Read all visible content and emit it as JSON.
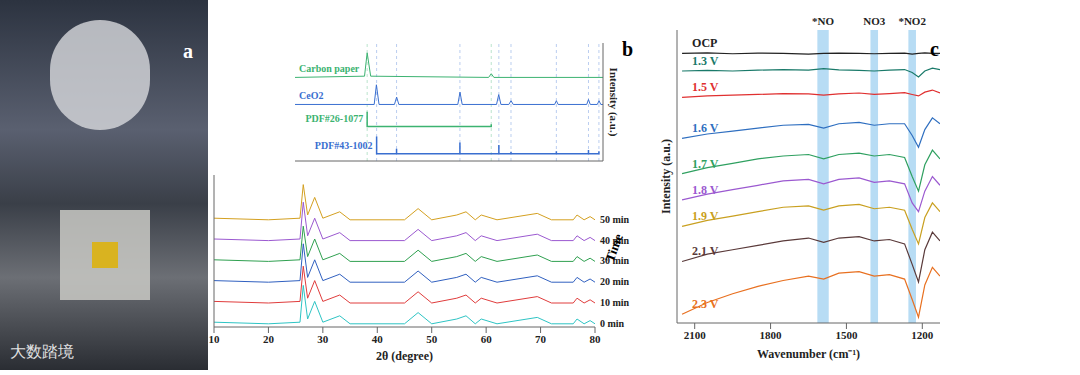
{
  "panel_labels": [
    "a",
    "b",
    "c"
  ],
  "photo": {
    "watermark": "大数踏境"
  },
  "chart_data": [
    {
      "type": "line",
      "y_label": "Intensity (a.u.)",
      "xlim": [
        10,
        80
      ],
      "ylim": [
        0,
        4.8
      ],
      "tick_labels": false,
      "series": [
        {
          "name": "Carbon paper",
          "color": "#3cb371",
          "x": [
            10,
            25.8,
            26.4,
            27.2,
            54,
            54.6,
            55.2,
            80
          ],
          "values": [
            3.4,
            3.45,
            4.4,
            3.45,
            3.4,
            3.55,
            3.4,
            3.4
          ]
        },
        {
          "name": "CeO2",
          "color": "#3a6fd0",
          "x": [
            10,
            28,
            28.5,
            29.1,
            32.6,
            33.1,
            33.6,
            47,
            47.5,
            48,
            55.8,
            56.3,
            56.8,
            58.6,
            59.1,
            59.6,
            69,
            69.4,
            69.8,
            76.3,
            76.7,
            77.1,
            78.7,
            79.1,
            79.5,
            80
          ],
          "values": [
            2.3,
            2.3,
            3.1,
            2.3,
            2.3,
            2.6,
            2.3,
            2.3,
            2.8,
            2.3,
            2.3,
            2.7,
            2.3,
            2.3,
            2.45,
            2.3,
            2.3,
            2.45,
            2.3,
            2.3,
            2.5,
            2.3,
            2.3,
            2.45,
            2.3,
            2.3
          ]
        },
        {
          "name": "PDF#26-1077",
          "type": "stick",
          "color": "#3cb371",
          "baseline": 1.4,
          "x": [
            26.4,
            54.6
          ],
          "values": [
            0.6,
            0.1
          ]
        },
        {
          "name": "PDF#43-1002",
          "type": "stick",
          "color": "#3a6fd0",
          "baseline": 0.3,
          "x": [
            28.55,
            33.08,
            47.48,
            56.33,
            59.09,
            69.4,
            76.7,
            79.07
          ],
          "values": [
            0.7,
            0.2,
            0.45,
            0.35,
            0.08,
            0.1,
            0.15,
            0.1
          ]
        }
      ]
    },
    {
      "type": "line",
      "x_label": "2θ (degree)",
      "z_label": "Time",
      "xlim": [
        10,
        80
      ],
      "xticks": [
        10,
        20,
        30,
        40,
        50,
        60,
        70,
        80
      ],
      "ylim": [
        0,
        9.5
      ],
      "tick_labels": "x",
      "x": [
        10,
        20,
        25.8,
        26.4,
        27.2,
        28.5,
        30,
        33.1,
        35,
        45,
        47.5,
        50,
        54.6,
        56.3,
        58,
        59.1,
        62,
        69.4,
        72,
        76,
        76.7,
        78,
        79.1,
        80
      ],
      "series": [
        {
          "name": "0 min",
          "color": "#2ec4c4",
          "values": [
            0.3,
            0.2,
            0.3,
            2.6,
            0.5,
            1.6,
            0.3,
            0.7,
            0.2,
            0.2,
            0.9,
            0.2,
            0.5,
            0.7,
            0.2,
            0.5,
            0.2,
            0.6,
            0.2,
            0.2,
            0.5,
            0.2,
            0.4,
            0.2
          ]
        },
        {
          "name": "10 min",
          "color": "#e03c3c",
          "values": [
            1.6,
            1.5,
            1.6,
            3.8,
            1.8,
            2.9,
            1.6,
            2.0,
            1.5,
            1.5,
            2.2,
            1.5,
            1.8,
            2.0,
            1.5,
            1.8,
            1.5,
            1.9,
            1.5,
            1.5,
            1.8,
            1.5,
            1.7,
            1.5
          ]
        },
        {
          "name": "20 min",
          "color": "#3060c0",
          "values": [
            2.9,
            2.8,
            2.9,
            5.2,
            3.1,
            4.2,
            2.9,
            3.3,
            2.8,
            2.8,
            3.5,
            2.8,
            3.1,
            3.3,
            2.8,
            3.1,
            2.8,
            3.2,
            2.8,
            2.8,
            3.1,
            2.8,
            3.0,
            2.8
          ]
        },
        {
          "name": "30 min",
          "color": "#2fa050",
          "values": [
            4.2,
            4.1,
            4.2,
            6.3,
            4.4,
            5.5,
            4.2,
            4.6,
            4.1,
            4.1,
            4.8,
            4.1,
            4.4,
            4.6,
            4.1,
            4.4,
            4.1,
            4.5,
            4.1,
            4.1,
            4.4,
            4.1,
            4.3,
            4.1
          ]
        },
        {
          "name": "40 min",
          "color": "#9b59d0",
          "values": [
            5.5,
            5.4,
            5.5,
            7.8,
            5.7,
            6.8,
            5.5,
            5.9,
            5.4,
            5.4,
            6.1,
            5.4,
            5.7,
            5.9,
            5.4,
            5.7,
            5.4,
            5.8,
            5.4,
            5.4,
            5.7,
            5.4,
            5.6,
            5.4
          ]
        },
        {
          "name": "50 min",
          "color": "#d4a020",
          "values": [
            6.8,
            6.7,
            6.8,
            8.9,
            7.0,
            8.1,
            6.8,
            7.2,
            6.7,
            6.7,
            7.4,
            6.7,
            7.0,
            7.2,
            6.7,
            7.0,
            6.7,
            7.1,
            6.7,
            6.7,
            7.0,
            6.7,
            6.9,
            6.7
          ]
        }
      ]
    },
    {
      "type": "line",
      "x_label": "Wavenumber (cm⁻¹)",
      "y_label": "Intensity (a.u.)",
      "xlim": [
        2170,
        1130
      ],
      "xticks": [
        2100,
        1800,
        1500,
        1200
      ],
      "ylim": [
        0,
        100
      ],
      "tick_labels": "x",
      "bands": [
        {
          "label": "*NO",
          "range": [
            1570,
            1615
          ],
          "color": "#9fd0f0"
        },
        {
          "label": "NO3",
          "range": [
            1375,
            1405
          ],
          "color": "#9fd0f0"
        },
        {
          "label": "*NO2",
          "range": [
            1225,
            1255
          ],
          "color": "#9fd0f0"
        }
      ],
      "x": [
        2150,
        2050,
        1950,
        1850,
        1750,
        1650,
        1590,
        1530,
        1450,
        1390,
        1330,
        1270,
        1240,
        1215,
        1190,
        1160,
        1130
      ],
      "series": [
        {
          "name": "OCP",
          "color": "#222222",
          "values": [
            92,
            92.2,
            91.9,
            92.1,
            92,
            91.8,
            92,
            92.1,
            92,
            91.9,
            92,
            92.1,
            91.8,
            92,
            92.2,
            92,
            92
          ]
        },
        {
          "name": "1.3 V",
          "color": "#1a7a6a",
          "values": [
            86,
            86.2,
            86,
            86.3,
            86.5,
            86.3,
            86.8,
            86.4,
            86.2,
            86,
            86.3,
            86.5,
            85.5,
            84,
            86,
            87,
            86.5
          ]
        },
        {
          "name": "1.5 V",
          "color": "#e03030",
          "values": [
            77,
            77.5,
            77.8,
            78,
            78.3,
            78.2,
            77.8,
            78.2,
            78.5,
            78,
            78.3,
            78.6,
            78,
            77.5,
            78.8,
            79.5,
            78.5
          ]
        },
        {
          "name": "1.6 V",
          "color": "#2f6fc0",
          "values": [
            63,
            64.5,
            65.5,
            66.5,
            67.5,
            67.8,
            66.5,
            68,
            68.5,
            67.5,
            68,
            68,
            64,
            60,
            66,
            70,
            68
          ]
        },
        {
          "name": "1.7 V",
          "color": "#2fa060",
          "values": [
            51,
            53,
            54.5,
            56,
            57,
            57.5,
            56,
            57.5,
            58,
            57,
            57.5,
            56.5,
            50,
            45,
            54,
            59,
            56
          ]
        },
        {
          "name": "1.8 V",
          "color": "#9b59d0",
          "values": [
            42,
            44,
            45.5,
            47,
            48.5,
            49,
            47.5,
            49,
            49.5,
            48,
            48.5,
            47.5,
            41,
            38,
            45,
            50,
            47
          ]
        },
        {
          "name": "1.9 V",
          "color": "#c9a020",
          "values": [
            33,
            35,
            36.5,
            38,
            39.5,
            40,
            38.5,
            40,
            40.5,
            39,
            39.5,
            38.5,
            32,
            27,
            36,
            41,
            38
          ]
        },
        {
          "name": "2.1 V",
          "color": "#5a3a3a",
          "values": [
            21,
            23.5,
            25,
            26.5,
            28,
            29,
            27.5,
            29,
            29.5,
            28,
            28.5,
            27,
            20,
            14,
            25,
            31,
            28
          ]
        },
        {
          "name": "2.3 V",
          "color": "#e87020",
          "values": [
            3,
            7,
            10,
            12.5,
            14.5,
            16,
            15,
            17,
            17.5,
            16,
            16.5,
            15,
            8,
            2,
            13,
            19,
            16
          ]
        }
      ]
    }
  ]
}
